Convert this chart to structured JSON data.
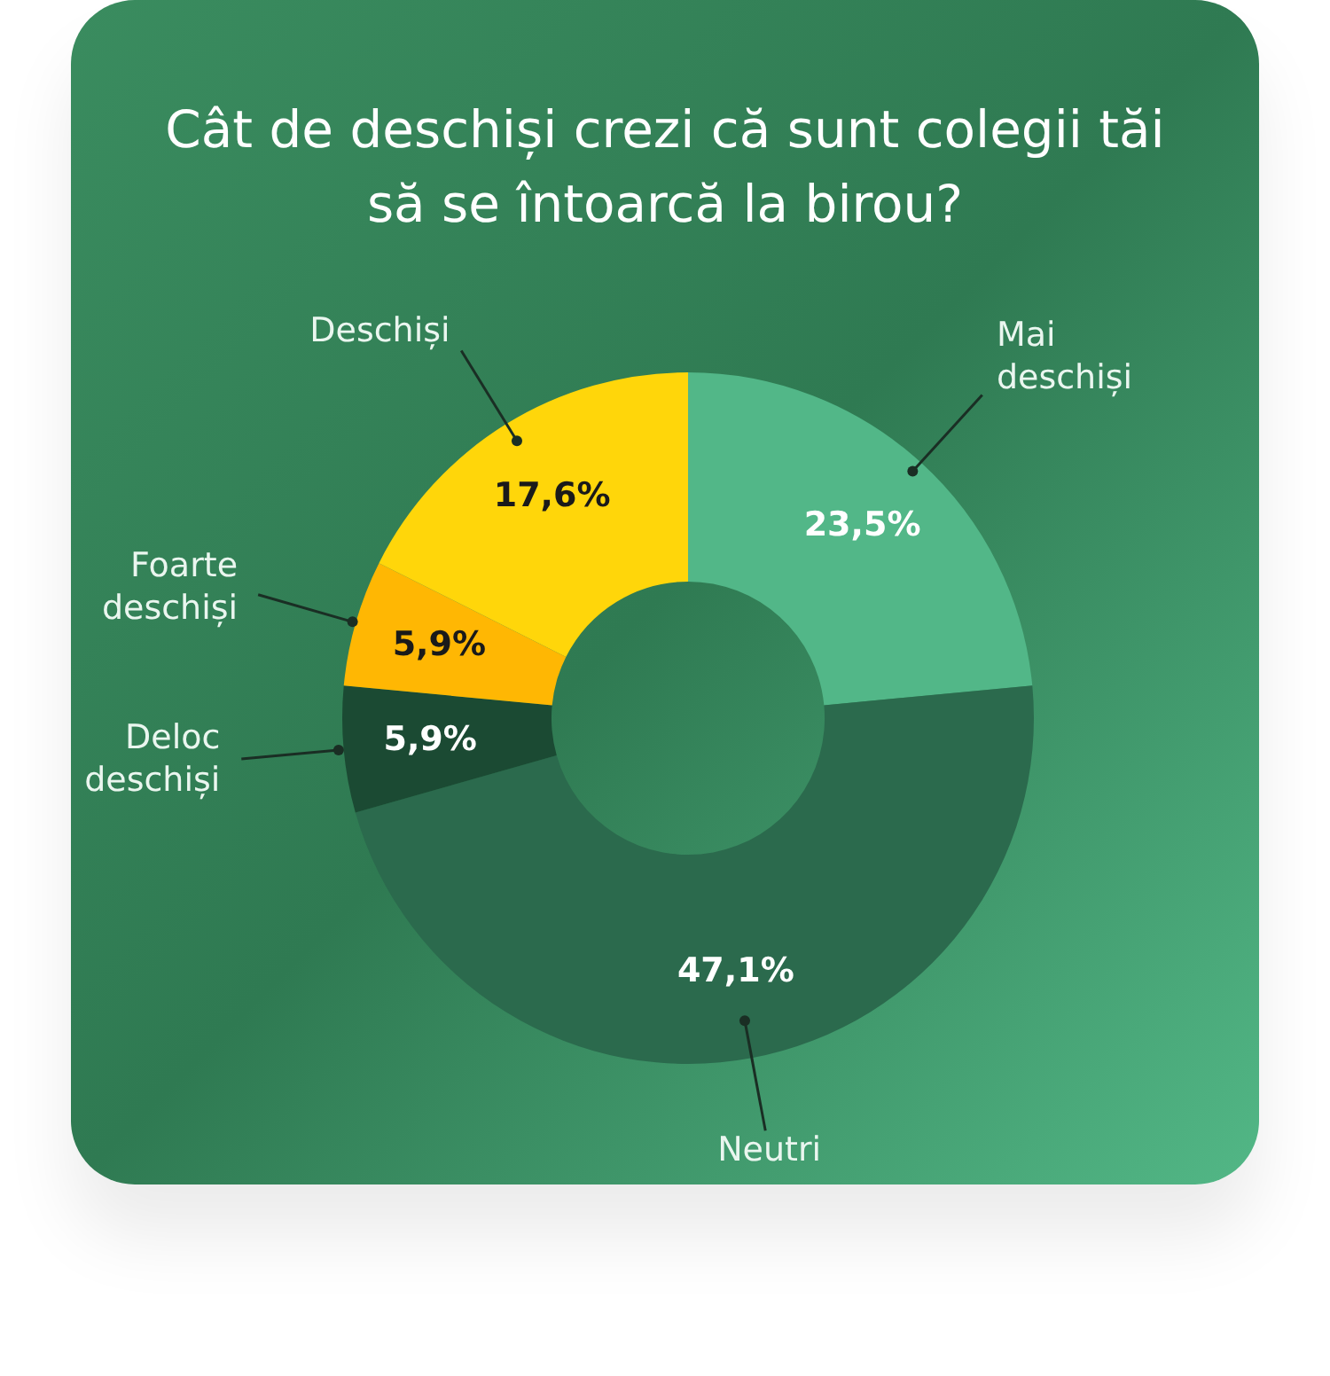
{
  "chart_data": {
    "type": "donut",
    "title": "Cât de deschiși crezi că sunt colegii tăi să se întoarcă la birou?",
    "categories": [
      "Mai deschiși",
      "Neutri",
      "Deloc deschiși",
      "Foarte deschiși",
      "Deschiși"
    ],
    "values": [
      23.5,
      47.1,
      5.9,
      5.9,
      17.6
    ],
    "colors": [
      "#52b788",
      "#2b6a4d",
      "#1b4a33",
      "#ffb703",
      "#ffd60a"
    ],
    "value_labels": [
      "23,5%",
      "47,1%",
      "5,9%",
      "5,9%",
      "17,6%"
    ]
  }
}
